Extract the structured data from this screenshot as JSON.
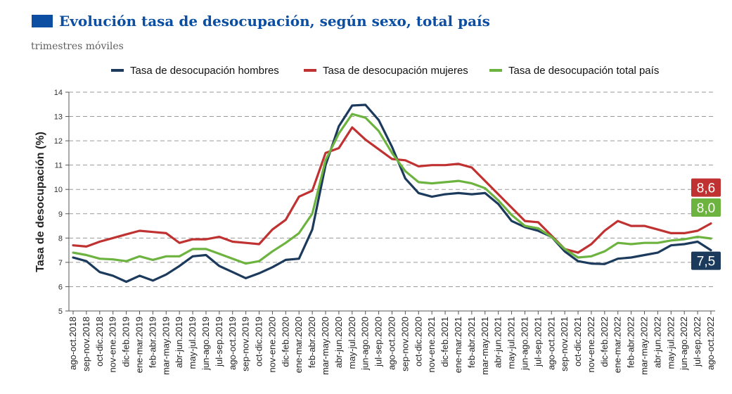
{
  "header": {
    "title": "Evolución tasa de desocupación, según sexo, total país",
    "subtitle": "trimestres móviles"
  },
  "chart_data": {
    "type": "line",
    "ylabel": "Tasa de desocupación (%)",
    "xlabel": "",
    "ylim": [
      5,
      14
    ],
    "yticks": [
      5,
      6,
      7,
      8,
      9,
      10,
      11,
      12,
      13,
      14
    ],
    "grid": "horizontal dashed",
    "legend_position": "top",
    "categories": [
      "ago-oct.2018",
      "sep-nov.2018",
      "oct-dic.2018",
      "nov-ene.2019",
      "dic-feb.2019",
      "ene-mar.2019",
      "feb-abr.2019",
      "mar-may.2019",
      "abr-jun.2019",
      "may-jul.2019",
      "jun-ago.2019",
      "jul-sep.2019",
      "ago-oct.2019",
      "sep-nov.2019",
      "oct-dic.2019",
      "nov-ene.2020",
      "dic-feb.2020",
      "ene-mar.2020",
      "feb-abr.2020",
      "mar-may.2020",
      "abr-jun.2020",
      "may-jul.2020",
      "jun-ago.2020",
      "jul-sep.2020",
      "ago-oct.2020",
      "sep-nov.2020",
      "oct-dic.2020",
      "nov-ene.2021",
      "dic-feb.2021",
      "ene-mar.2021",
      "feb-abr.2021",
      "mar-may.2021",
      "abr-jun.2021",
      "may-jul.2021",
      "jun-ago.2021",
      "jul-sep.2021",
      "ago-oct.2021",
      "sep-nov.2021",
      "oct-dic.2021",
      "nov-ene.2022",
      "dic-feb.2022",
      "ene-mar.2022",
      "feb-abr.2022",
      "mar-may.2022",
      "abr-jun.2022",
      "may-jul.2022",
      "jun-ago.2022",
      "jul-sep.2022",
      "ago-oct.2022"
    ],
    "series": [
      {
        "name": "Tasa de desocupación hombres",
        "color": "#1b3a5c",
        "values": [
          7.2,
          7.05,
          6.6,
          6.45,
          6.2,
          6.45,
          6.25,
          6.5,
          6.85,
          7.25,
          7.3,
          6.85,
          6.6,
          6.35,
          6.55,
          6.8,
          7.1,
          7.15,
          8.35,
          11.0,
          12.6,
          13.45,
          13.48,
          12.85,
          11.75,
          10.45,
          9.85,
          9.7,
          9.8,
          9.85,
          9.8,
          9.85,
          9.4,
          8.7,
          8.45,
          8.3,
          8.05,
          7.45,
          7.05,
          6.95,
          6.93,
          7.15,
          7.2,
          7.3,
          7.4,
          7.7,
          7.75,
          7.85,
          7.5
        ],
        "end_label": "7,5"
      },
      {
        "name": "Tasa de desocupación mujeres",
        "color": "#c03232",
        "values": [
          7.7,
          7.65,
          7.85,
          8.0,
          8.15,
          8.3,
          8.25,
          8.2,
          7.8,
          7.95,
          7.95,
          8.05,
          7.85,
          7.8,
          7.75,
          8.35,
          8.75,
          9.7,
          9.95,
          11.5,
          11.7,
          12.55,
          12.05,
          11.65,
          11.25,
          11.2,
          10.95,
          11.0,
          11.0,
          11.05,
          10.9,
          10.35,
          9.8,
          9.25,
          8.7,
          8.65,
          8.1,
          7.55,
          7.4,
          7.75,
          8.3,
          8.7,
          8.5,
          8.5,
          8.35,
          8.2,
          8.2,
          8.3,
          8.6
        ],
        "end_label": "8,6"
      },
      {
        "name": "Tasa de desocupación total país",
        "color": "#6db33f",
        "values": [
          7.4,
          7.3,
          7.15,
          7.12,
          7.05,
          7.25,
          7.1,
          7.25,
          7.25,
          7.55,
          7.55,
          7.35,
          7.15,
          6.95,
          7.05,
          7.45,
          7.8,
          8.2,
          9.0,
          11.2,
          12.3,
          13.1,
          12.95,
          12.4,
          11.5,
          10.75,
          10.3,
          10.25,
          10.3,
          10.35,
          10.25,
          10.05,
          9.55,
          8.95,
          8.5,
          8.4,
          8.05,
          7.55,
          7.2,
          7.25,
          7.45,
          7.8,
          7.75,
          7.8,
          7.8,
          7.9,
          7.95,
          8.05,
          7.98
        ],
        "end_label": "8,0"
      }
    ]
  }
}
